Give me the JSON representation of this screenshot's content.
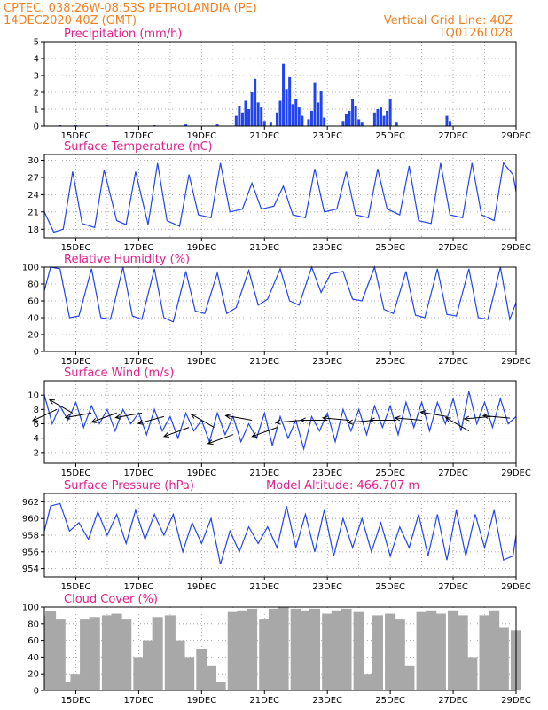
{
  "header": {
    "left_line1": "CPTEC:   038:26W-08:53S   PETROLANDIA (PE)",
    "left_line2": "14DEC2020 40Z (GMT)",
    "right_line1": "Vertical Grid Line: 40Z",
    "right_line2": "TQ0126L028"
  },
  "x_axis": {
    "start_day": 14,
    "end_day": 29,
    "tick_days": [
      15,
      17,
      19,
      21,
      23,
      25,
      27,
      29
    ],
    "tick_labels": [
      "15DEC",
      "17DEC",
      "19DEC",
      "21DEC",
      "23DEC",
      "25DEC",
      "27DEC",
      "29DEC"
    ],
    "grid_days": [
      15,
      16,
      17,
      18,
      19,
      20,
      21,
      22,
      23,
      24,
      25,
      26,
      27,
      28,
      29
    ]
  },
  "chart_data": [
    {
      "type": "bar",
      "title": "Precipitation (mm/h)",
      "ylim": [
        0,
        5
      ],
      "yticks": [
        0,
        1,
        2,
        3,
        4,
        5
      ],
      "color": "#2244ee",
      "x": [
        14.5,
        15.0,
        16.0,
        17.5,
        18.5,
        19.5,
        20.1,
        20.2,
        20.3,
        20.4,
        20.5,
        20.6,
        20.7,
        20.8,
        20.9,
        21.0,
        21.2,
        21.4,
        21.5,
        21.6,
        21.7,
        21.8,
        21.9,
        22.0,
        22.1,
        22.2,
        22.4,
        22.5,
        22.6,
        22.7,
        22.8,
        22.9,
        23.5,
        23.6,
        23.7,
        23.8,
        23.9,
        24.0,
        24.1,
        24.5,
        24.6,
        24.7,
        24.8,
        24.9,
        25.0,
        25.2,
        26.8,
        26.9
      ],
      "values": [
        0.05,
        0.05,
        0.05,
        0.05,
        0.1,
        0.1,
        0.6,
        1.2,
        0.8,
        1.5,
        1.0,
        2.0,
        2.8,
        1.4,
        1.1,
        0.3,
        0.2,
        0.8,
        1.5,
        3.7,
        2.2,
        2.9,
        1.3,
        1.6,
        1.1,
        0.6,
        0.4,
        0.9,
        2.6,
        1.4,
        2.1,
        0.5,
        0.3,
        0.7,
        0.9,
        1.6,
        1.2,
        0.4,
        0.2,
        0.8,
        1.0,
        1.1,
        0.6,
        0.9,
        1.6,
        0.2,
        0.6,
        0.3
      ]
    },
    {
      "type": "line",
      "title": "Surface Temperature (nC)",
      "ylim": [
        16.5,
        31
      ],
      "yticks": [
        18,
        21,
        24,
        27,
        30
      ],
      "color": "#2244ee",
      "x": [
        14.0,
        14.3,
        14.6,
        14.9,
        15.2,
        15.6,
        15.9,
        16.3,
        16.6,
        16.9,
        17.3,
        17.6,
        17.9,
        18.3,
        18.6,
        18.9,
        19.3,
        19.6,
        19.9,
        20.3,
        20.6,
        20.9,
        21.3,
        21.6,
        21.9,
        22.3,
        22.6,
        22.9,
        23.3,
        23.6,
        23.9,
        24.3,
        24.6,
        24.9,
        25.3,
        25.6,
        25.9,
        26.3,
        26.6,
        26.9,
        27.3,
        27.6,
        27.9,
        28.3,
        28.6,
        28.9,
        29.0
      ],
      "values": [
        21.0,
        17.5,
        18.0,
        28.0,
        19.0,
        18.3,
        28.3,
        19.5,
        18.8,
        28.0,
        18.8,
        29.5,
        19.5,
        18.5,
        27.5,
        20.5,
        20.0,
        29.5,
        21.0,
        21.5,
        26.0,
        21.5,
        22.0,
        25.5,
        20.5,
        20.0,
        28.5,
        21.0,
        21.5,
        28.0,
        20.5,
        20.0,
        28.5,
        21.5,
        20.5,
        29.0,
        19.5,
        19.0,
        29.5,
        20.5,
        20.0,
        29.5,
        20.5,
        19.5,
        29.5,
        27.5,
        24.5
      ]
    },
    {
      "type": "line",
      "title": "Relative Humidity (%)",
      "ylim": [
        0,
        100
      ],
      "yticks": [
        0,
        20,
        40,
        60,
        80,
        100
      ],
      "color": "#2244ee",
      "x": [
        14.0,
        14.2,
        14.5,
        14.8,
        15.1,
        15.5,
        15.8,
        16.1,
        16.5,
        16.8,
        17.1,
        17.5,
        17.8,
        18.1,
        18.5,
        18.8,
        19.1,
        19.5,
        19.8,
        20.1,
        20.5,
        20.8,
        21.1,
        21.5,
        21.8,
        22.1,
        22.5,
        22.8,
        23.1,
        23.5,
        23.8,
        24.1,
        24.5,
        24.8,
        25.1,
        25.5,
        25.8,
        26.1,
        26.5,
        26.8,
        27.1,
        27.5,
        27.8,
        28.1,
        28.5,
        28.8,
        29.0
      ],
      "values": [
        72,
        100,
        98,
        40,
        42,
        98,
        40,
        38,
        100,
        42,
        38,
        98,
        40,
        35,
        95,
        48,
        45,
        93,
        45,
        52,
        96,
        55,
        62,
        98,
        60,
        55,
        100,
        70,
        92,
        95,
        62,
        60,
        100,
        50,
        45,
        95,
        43,
        40,
        98,
        44,
        42,
        98,
        40,
        38,
        100,
        38,
        58
      ]
    },
    {
      "type": "line",
      "title": "Surface Wind (m/s)",
      "ylim": [
        0.5,
        12
      ],
      "yticks": [
        2,
        4,
        6,
        8,
        10
      ],
      "color": "#2244ee",
      "x": [
        14.0,
        14.25,
        14.5,
        14.75,
        15.0,
        15.25,
        15.5,
        15.75,
        16.0,
        16.25,
        16.5,
        16.75,
        17.0,
        17.25,
        17.5,
        17.75,
        18.0,
        18.25,
        18.5,
        18.75,
        19.0,
        19.25,
        19.5,
        19.75,
        20.0,
        20.25,
        20.5,
        20.75,
        21.0,
        21.25,
        21.5,
        21.75,
        22.0,
        22.25,
        22.5,
        22.75,
        23.0,
        23.25,
        23.5,
        23.75,
        24.0,
        24.25,
        24.5,
        24.75,
        25.0,
        25.25,
        25.5,
        25.75,
        26.0,
        26.25,
        26.5,
        26.75,
        27.0,
        27.25,
        27.5,
        27.75,
        28.0,
        28.25,
        28.5,
        28.75,
        29.0
      ],
      "values": [
        10.0,
        6.0,
        8.5,
        6.5,
        9.0,
        5.5,
        8.5,
        6.0,
        8.0,
        5.0,
        8.0,
        6.0,
        7.5,
        4.5,
        8.0,
        5.0,
        7.0,
        4.0,
        7.5,
        5.0,
        6.5,
        3.5,
        7.5,
        4.5,
        7.0,
        3.5,
        6.0,
        4.0,
        7.5,
        3.0,
        7.0,
        4.0,
        6.5,
        2.5,
        7.0,
        5.0,
        7.5,
        3.5,
        8.0,
        5.0,
        8.0,
        4.5,
        8.5,
        5.5,
        8.5,
        4.5,
        9.0,
        5.5,
        9.0,
        5.0,
        9.0,
        6.0,
        9.5,
        5.0,
        10.5,
        6.0,
        9.0,
        5.5,
        9.5,
        6.0,
        7.0
      ],
      "vectors": [
        {
          "day": 14.4,
          "speed": 8.0,
          "angle": 205
        },
        {
          "day": 14.9,
          "speed": 7.5,
          "angle": 150
        },
        {
          "day": 15.5,
          "speed": 7.5,
          "angle": 190
        },
        {
          "day": 16.3,
          "speed": 7.5,
          "angle": 200
        },
        {
          "day": 17.1,
          "speed": 7.5,
          "angle": 190
        },
        {
          "day": 17.8,
          "speed": 7.0,
          "angle": 195
        },
        {
          "day": 18.6,
          "speed": 5.5,
          "angle": 200
        },
        {
          "day": 19.4,
          "speed": 5.5,
          "angle": 150
        },
        {
          "day": 20.0,
          "speed": 4.5,
          "angle": 200
        },
        {
          "day": 20.6,
          "speed": 6.5,
          "angle": 170
        },
        {
          "day": 21.4,
          "speed": 5.5,
          "angle": 200
        },
        {
          "day": 22.2,
          "speed": 6.5,
          "angle": 185
        },
        {
          "day": 23.0,
          "speed": 6.5,
          "angle": 180
        },
        {
          "day": 23.7,
          "speed": 6.5,
          "angle": 175
        },
        {
          "day": 24.5,
          "speed": 6.5,
          "angle": 185
        },
        {
          "day": 25.2,
          "speed": 6.5,
          "angle": 180
        },
        {
          "day": 26.0,
          "speed": 6.5,
          "angle": 175
        },
        {
          "day": 26.8,
          "speed": 7.0,
          "angle": 170
        },
        {
          "day": 27.5,
          "speed": 5.0,
          "angle": 150
        },
        {
          "day": 28.2,
          "speed": 7.0,
          "angle": 185
        },
        {
          "day": 28.8,
          "speed": 6.8,
          "angle": 175
        }
      ]
    },
    {
      "type": "line",
      "title": "Surface Pressure (hPa)",
      "annotation": "Model Altitude: 466.707  m",
      "ylim": [
        953,
        963
      ],
      "yticks": [
        954,
        956,
        958,
        960,
        962
      ],
      "color": "#2244ee",
      "x": [
        14.0,
        14.2,
        14.5,
        14.8,
        15.1,
        15.4,
        15.7,
        16.0,
        16.3,
        16.6,
        16.9,
        17.2,
        17.5,
        17.8,
        18.1,
        18.4,
        18.7,
        19.0,
        19.3,
        19.6,
        19.9,
        20.2,
        20.5,
        20.8,
        21.1,
        21.4,
        21.7,
        22.0,
        22.3,
        22.6,
        22.9,
        23.2,
        23.5,
        23.8,
        24.1,
        24.4,
        24.7,
        25.0,
        25.3,
        25.6,
        25.9,
        26.2,
        26.5,
        26.8,
        27.1,
        27.4,
        27.7,
        28.0,
        28.3,
        28.6,
        28.9,
        29.0
      ],
      "values": [
        958.5,
        961.5,
        961.8,
        958.5,
        959.5,
        957.5,
        960.8,
        958.0,
        960.5,
        957.0,
        961.0,
        957.5,
        960.5,
        958.0,
        960.5,
        956.0,
        959.5,
        957.0,
        960.0,
        954.5,
        958.5,
        956.0,
        959.0,
        957.0,
        959.0,
        956.5,
        961.5,
        956.5,
        960.5,
        956.0,
        961.0,
        955.5,
        960.0,
        956.5,
        960.0,
        956.0,
        959.5,
        955.5,
        959.0,
        956.5,
        960.5,
        955.5,
        960.5,
        955.0,
        961.0,
        955.5,
        960.5,
        956.5,
        961.0,
        955.0,
        955.5,
        958.0
      ]
    },
    {
      "type": "area",
      "title": "Cloud Cover (%)",
      "ylim": [
        0,
        100
      ],
      "yticks": [
        0,
        20,
        40,
        60,
        80,
        100
      ],
      "color": "#a8a8a8",
      "x": [
        14.0,
        14.2,
        14.5,
        14.8,
        15.0,
        15.3,
        15.6,
        16.0,
        16.3,
        16.6,
        17.0,
        17.3,
        17.6,
        18.0,
        18.3,
        18.6,
        19.0,
        19.3,
        19.6,
        20.0,
        20.3,
        20.6,
        21.0,
        21.3,
        21.6,
        22.0,
        22.3,
        22.6,
        23.0,
        23.3,
        23.6,
        24.0,
        24.3,
        24.6,
        25.0,
        25.3,
        25.6,
        26.0,
        26.3,
        26.6,
        27.0,
        27.3,
        27.6,
        28.0,
        28.3,
        28.6,
        29.0
      ],
      "values": [
        90,
        95,
        85,
        10,
        20,
        85,
        88,
        90,
        92,
        85,
        40,
        60,
        88,
        90,
        60,
        40,
        50,
        30,
        10,
        94,
        96,
        98,
        85,
        98,
        100,
        98,
        96,
        98,
        92,
        96,
        98,
        94,
        20,
        90,
        92,
        85,
        30,
        94,
        96,
        92,
        96,
        90,
        40,
        90,
        96,
        75,
        72
      ]
    }
  ]
}
